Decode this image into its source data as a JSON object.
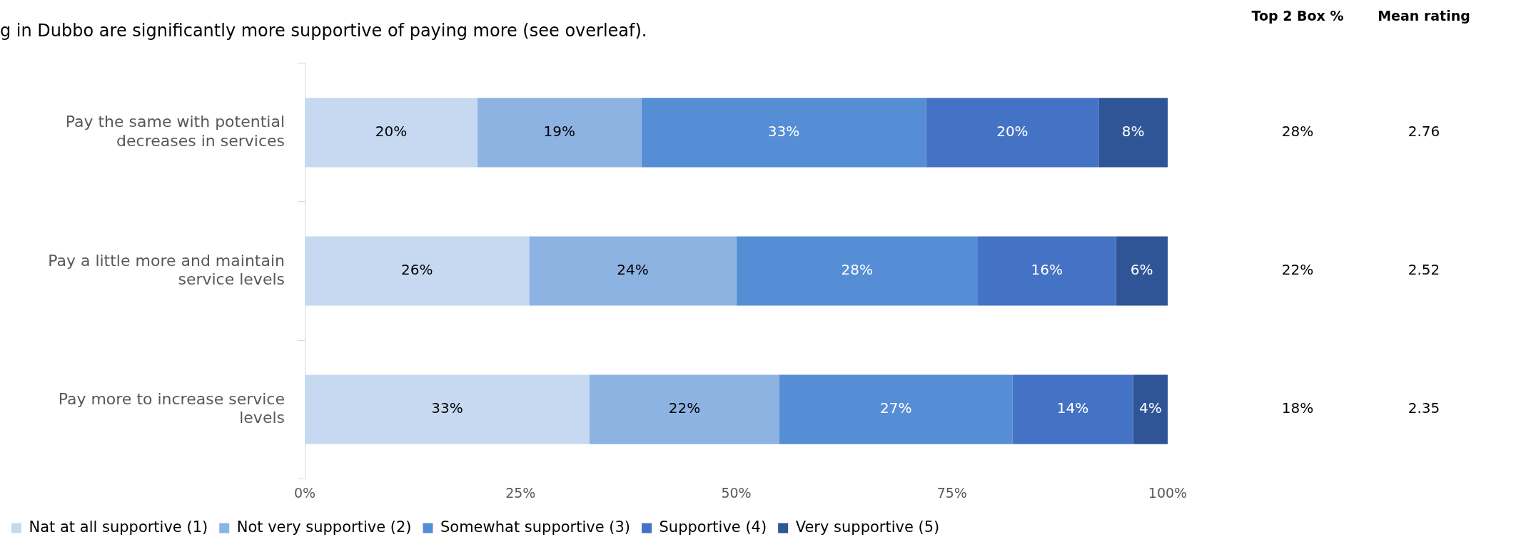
{
  "chart_data": {
    "type": "bar",
    "orientation": "horizontal",
    "stacked": true,
    "title": "g in Dubbo are significantly more supportive of paying more (see overleaf).",
    "categories": [
      "Pay the same with potential decreases in services",
      "Pay a little more and maintain service levels",
      "Pay more to increase service levels"
    ],
    "series": [
      {
        "name": "Nat at all supportive (1)",
        "color": "#c6d9f0",
        "values": [
          20,
          26,
          33
        ],
        "value_labels": [
          "20%",
          "26%",
          "33%"
        ]
      },
      {
        "name": "Not very supportive (2)",
        "color": "#8db3e2",
        "values": [
          19,
          24,
          22
        ],
        "value_labels": [
          "19%",
          "24%",
          "22%"
        ]
      },
      {
        "name": "Somewhat supportive (3)",
        "color": "#558ed5",
        "values": [
          33,
          28,
          27
        ],
        "value_labels": [
          "33%",
          "28%",
          "27%"
        ]
      },
      {
        "name": "Supportive (4)",
        "color": "#4472c4",
        "values": [
          20,
          16,
          14
        ],
        "value_labels": [
          "20%",
          "16%",
          "14%"
        ]
      },
      {
        "name": "Very supportive (5)",
        "color": "#2f5597",
        "values": [
          8,
          6,
          4
        ],
        "value_labels": [
          "8%",
          "6%",
          "4%"
        ]
      }
    ],
    "xlim": [
      0,
      100
    ],
    "xticks": [
      {
        "value": 0,
        "label": "0%"
      },
      {
        "value": 25,
        "label": "25%"
      },
      {
        "value": 50,
        "label": "50%"
      },
      {
        "value": 75,
        "label": "75%"
      },
      {
        "value": 100,
        "label": "100%"
      }
    ],
    "grid": false,
    "legend": "bottom",
    "annotations": [
      "Top 2 Box %",
      "Mean rating",
      "28%",
      "2.76",
      "22%",
      "2.52",
      "18%",
      "2.35"
    ]
  }
}
